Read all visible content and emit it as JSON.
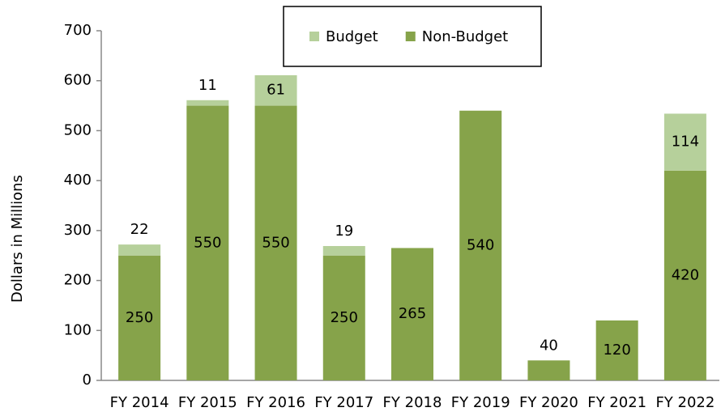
{
  "chart_data": {
    "type": "stacked_bar",
    "y_label": "Dollars in Millions",
    "categories": [
      "FY 2014",
      "FY 2015",
      "FY 2016",
      "FY 2017",
      "FY 2018",
      "FY 2019",
      "FY 2020",
      "FY 2021",
      "FY 2022"
    ],
    "series": [
      {
        "name": "Non-Budget",
        "color": "#86a34a",
        "values": [
          250,
          550,
          550,
          250,
          265,
          540,
          40,
          120,
          420
        ]
      },
      {
        "name": "Budget",
        "color": "#b6d09b",
        "values": [
          22,
          11,
          61,
          19,
          null,
          null,
          null,
          null,
          114
        ]
      }
    ],
    "ylim": [
      0,
      700
    ],
    "yticks": [
      0,
      100,
      200,
      300,
      400,
      500,
      600,
      700
    ],
    "legend": "top",
    "grid": false
  }
}
